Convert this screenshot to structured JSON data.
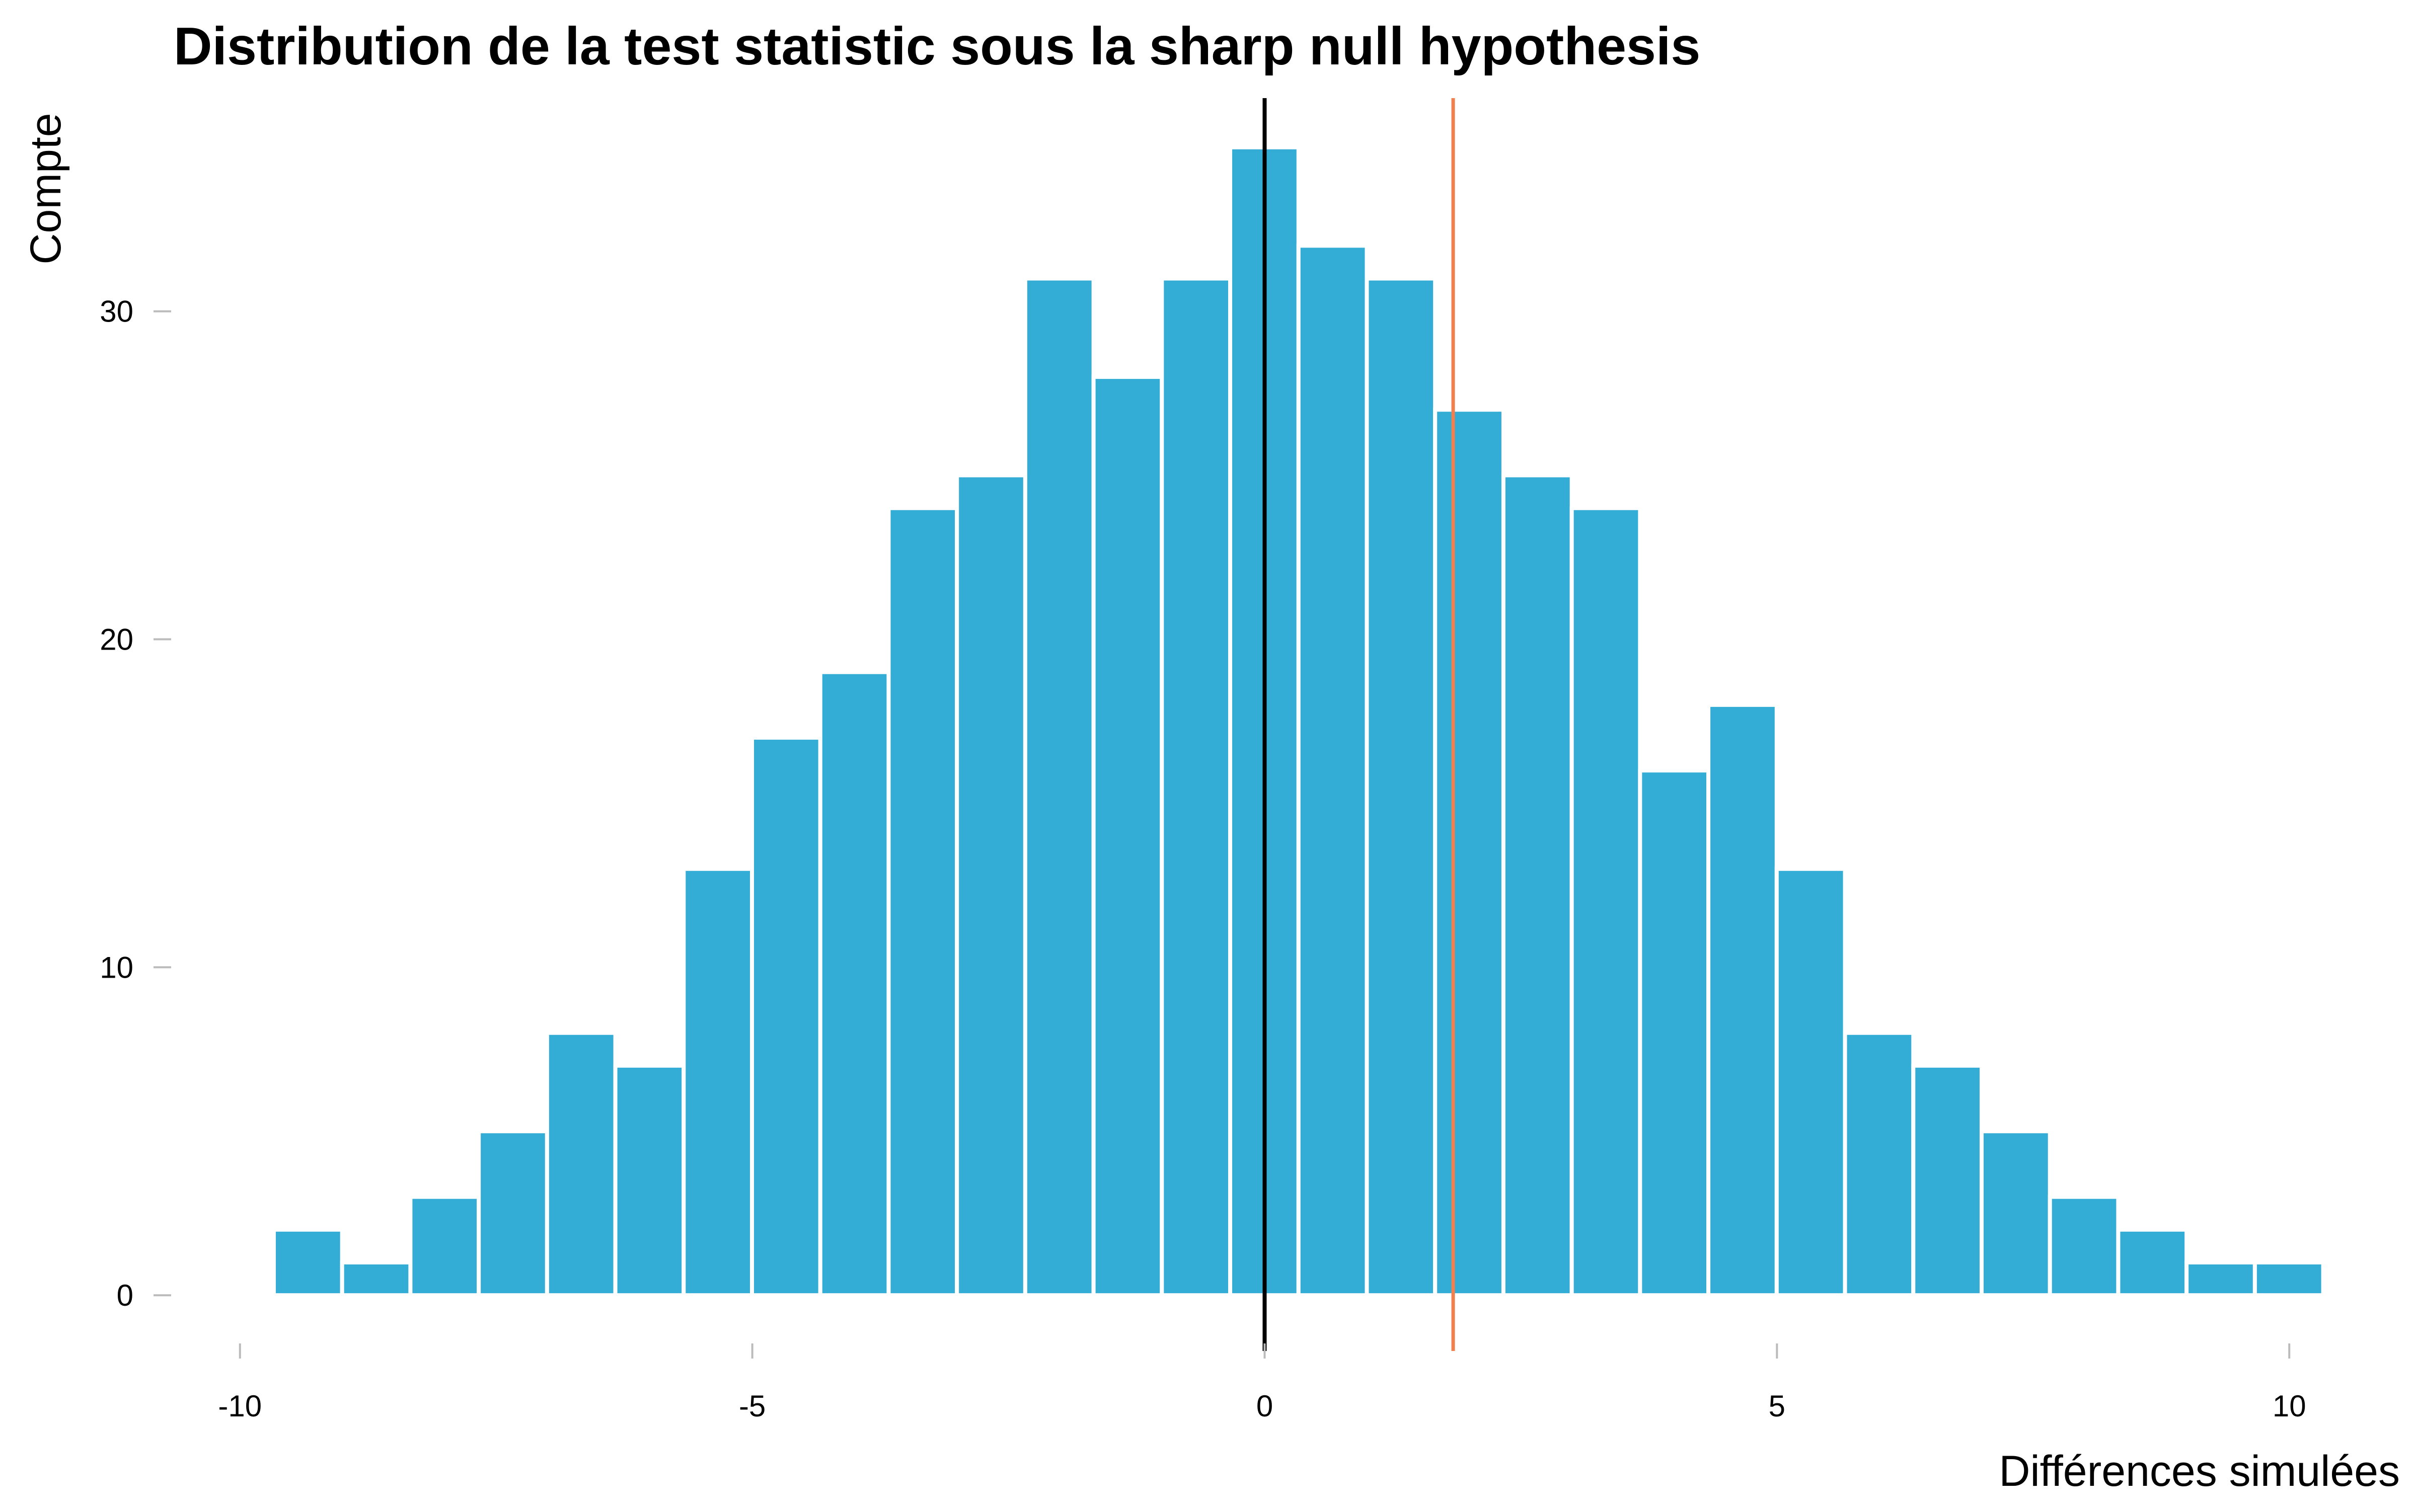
{
  "chart_data": {
    "type": "bar",
    "title": "Distribution de la test statistic sous la sharp null hypothesis",
    "xlabel": "Différences simulées",
    "ylabel": "Compte",
    "bin_width": 0.6667,
    "bin_start": -9.67,
    "values": [
      2,
      1,
      3,
      5,
      8,
      7,
      13,
      17,
      19,
      24,
      25,
      31,
      28,
      31,
      35,
      32,
      31,
      27,
      25,
      24,
      16,
      18,
      13,
      8,
      7,
      5,
      3,
      2,
      1,
      1
    ],
    "xlim": [
      -10.5,
      10.5
    ],
    "ylim": [
      -1.7,
      36.5
    ],
    "x_ticks": [
      -10,
      -5,
      0,
      5,
      10
    ],
    "x_tick_labels": [
      "-10",
      "-5",
      "0",
      "5",
      "10"
    ],
    "y_ticks": [
      0,
      10,
      20,
      30
    ],
    "y_tick_labels": [
      "0",
      "10",
      "20",
      "30"
    ],
    "reference_lines": [
      {
        "x": 0,
        "color": "#000000"
      },
      {
        "x": 1.84,
        "color": "#F08050"
      }
    ],
    "bar_color": "#33ADD6",
    "grid": false
  }
}
